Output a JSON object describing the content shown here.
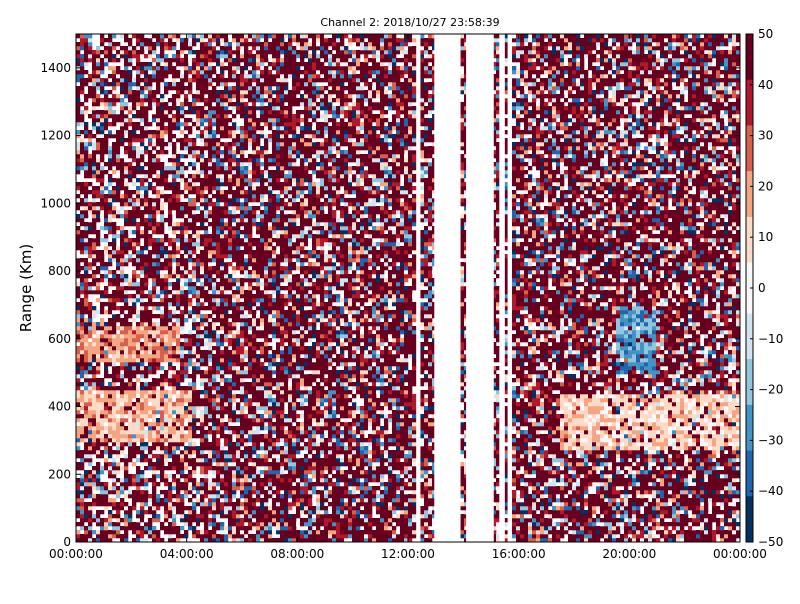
{
  "chart_data": {
    "type": "heatmap",
    "title": "Channel 2: 2018/10/27 23:58:39",
    "xlabel": "",
    "ylabel": "Range (Km)",
    "x_ticks": [
      "00:00:00",
      "04:00:00",
      "08:00:00",
      "12:00:00",
      "16:00:00",
      "20:00:00",
      "00:00:00"
    ],
    "xlim_hours": [
      0,
      24
    ],
    "y_ticks": [
      0,
      200,
      400,
      600,
      800,
      1000,
      1200,
      1400
    ],
    "ylim": [
      0,
      1500
    ],
    "colorbar": {
      "ticks": [
        50,
        40,
        30,
        20,
        10,
        0,
        -10,
        -20,
        -30,
        -40,
        -50
      ],
      "range": [
        -50,
        50
      ],
      "colormap": "RdBu_r",
      "colors": [
        "#053061",
        "#2166ac",
        "#4393c3",
        "#92c5de",
        "#d1e5f0",
        "#f7f7f7",
        "#fddbc7",
        "#f4a582",
        "#d6604d",
        "#b2182b",
        "#67001f"
      ]
    },
    "no_data_bands_hours": [
      [
        12.3,
        12.45
      ],
      [
        12.95,
        13.9
      ],
      [
        14.1,
        15.1
      ],
      [
        15.3,
        15.5
      ],
      [
        15.6,
        15.75
      ]
    ],
    "features": [
      {
        "label": "echo band",
        "hours": [
          0,
          4.2
        ],
        "range_km": [
          300,
          450
        ],
        "value": 15
      },
      {
        "label": "echo band",
        "hours": [
          0,
          3.7
        ],
        "range_km": [
          530,
          640
        ],
        "value": 20
      },
      {
        "label": "echo band",
        "hours": [
          17.5,
          24
        ],
        "range_km": [
          270,
          440
        ],
        "value": 10
      },
      {
        "label": "echo streak",
        "hours": [
          19.5,
          21.0
        ],
        "range_km": [
          500,
          700
        ],
        "value": -25
      }
    ],
    "grid": false,
    "legend": "colorbar-right"
  }
}
